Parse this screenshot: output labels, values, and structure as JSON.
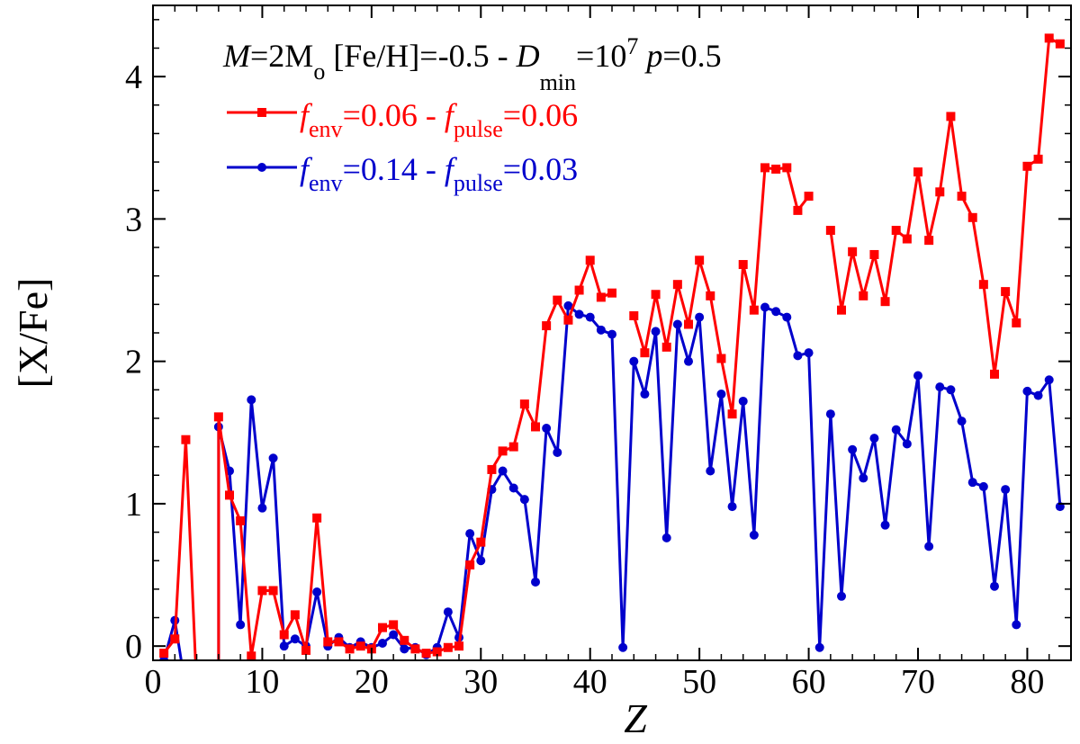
{
  "chart_data": {
    "type": "line",
    "title": {
      "m_symbol": "M",
      "m_value": "=2M",
      "m_sub": "o",
      "feh": " [Fe/H]=-0.5 - ",
      "d_symbol": "D",
      "d_sub": "min",
      "d_value": "=10",
      "d_sup": "7",
      "p_symbol": " p",
      "p_value": "=0.5"
    },
    "xlabel": "Z",
    "ylabel": "[X/Fe]",
    "xlim": [
      0,
      84
    ],
    "ylim": [
      -0.1,
      4.5
    ],
    "xticks": [
      "0",
      "10",
      "20",
      "30",
      "40",
      "50",
      "60",
      "70",
      "80"
    ],
    "yticks": [
      "0",
      "1",
      "2",
      "3",
      "4"
    ],
    "grid": false,
    "legend_position": "top-left",
    "series": [
      {
        "legend": {
          "f1": "f",
          "f1_sub": "env",
          "v1": "=0.06 - ",
          "f2": "f",
          "f2_sub": "pulse",
          "v2": "=0.06"
        },
        "color": "#ff0000",
        "marker": "square",
        "points": [
          [
            1,
            -0.05
          ],
          [
            2,
            0.05
          ],
          [
            3,
            1.45
          ],
          [
            4,
            -0.3
          ],
          null,
          [
            6,
            -0.3
          ],
          [
            6,
            1.61
          ],
          [
            7,
            1.06
          ],
          [
            8,
            0.88
          ],
          [
            9,
            -0.07
          ],
          [
            10,
            0.39
          ],
          [
            11,
            0.39
          ],
          [
            12,
            0.08
          ],
          [
            13,
            0.22
          ],
          [
            14,
            -0.03
          ],
          [
            15,
            0.9
          ],
          [
            16,
            0.03
          ],
          [
            17,
            0.03
          ],
          [
            18,
            -0.02
          ],
          [
            19,
            0.0
          ],
          [
            20,
            -0.02
          ],
          [
            21,
            0.13
          ],
          [
            22,
            0.15
          ],
          [
            23,
            0.04
          ],
          [
            24,
            -0.02
          ],
          [
            25,
            -0.05
          ],
          [
            26,
            -0.04
          ],
          [
            27,
            -0.01
          ],
          [
            28,
            0.0
          ],
          [
            29,
            0.57
          ],
          [
            30,
            0.73
          ],
          [
            31,
            1.24
          ],
          [
            32,
            1.37
          ],
          [
            33,
            1.4
          ],
          [
            34,
            1.7
          ],
          [
            35,
            1.54
          ],
          [
            36,
            2.25
          ],
          [
            37,
            2.43
          ],
          [
            38,
            2.29
          ],
          [
            39,
            2.5
          ],
          [
            40,
            2.71
          ],
          [
            41,
            2.45
          ],
          [
            42,
            2.48
          ],
          null,
          [
            44,
            2.32
          ],
          [
            45,
            2.06
          ],
          [
            46,
            2.47
          ],
          [
            47,
            2.1
          ],
          [
            48,
            2.54
          ],
          [
            49,
            2.26
          ],
          [
            50,
            2.71
          ],
          [
            51,
            2.46
          ],
          [
            52,
            2.02
          ],
          [
            53,
            1.63
          ],
          [
            54,
            2.68
          ],
          [
            55,
            2.36
          ],
          [
            56,
            3.36
          ],
          [
            57,
            3.35
          ],
          [
            58,
            3.36
          ],
          [
            59,
            3.06
          ],
          [
            60,
            3.16
          ],
          null,
          [
            62,
            2.92
          ],
          [
            63,
            2.36
          ],
          [
            64,
            2.77
          ],
          [
            65,
            2.46
          ],
          [
            66,
            2.75
          ],
          [
            67,
            2.42
          ],
          [
            68,
            2.92
          ],
          [
            69,
            2.86
          ],
          [
            70,
            3.33
          ],
          [
            71,
            2.85
          ],
          [
            72,
            3.19
          ],
          [
            73,
            3.72
          ],
          [
            74,
            3.16
          ],
          [
            75,
            3.01
          ],
          [
            76,
            2.54
          ],
          [
            77,
            1.91
          ],
          [
            78,
            2.49
          ],
          [
            79,
            2.27
          ],
          [
            80,
            3.37
          ],
          [
            81,
            3.42
          ],
          [
            82,
            4.27
          ],
          [
            83,
            4.23
          ]
        ]
      },
      {
        "legend": {
          "f1": "f",
          "f1_sub": "env",
          "v1": "=0.14 - ",
          "f2": "f",
          "f2_sub": "pulse",
          "v2": "=0.03"
        },
        "color": "#0000cc",
        "marker": "circle",
        "points": [
          [
            1,
            -0.1
          ],
          [
            2,
            0.18
          ],
          [
            3,
            -0.3
          ],
          null,
          [
            6,
            -0.3
          ],
          [
            6,
            1.54
          ],
          [
            7,
            1.23
          ],
          [
            8,
            0.15
          ],
          [
            9,
            1.73
          ],
          [
            10,
            0.97
          ],
          [
            11,
            1.32
          ],
          [
            12,
            0.0
          ],
          [
            13,
            0.05
          ],
          [
            14,
            0.0
          ],
          [
            15,
            0.38
          ],
          [
            16,
            0.0
          ],
          [
            17,
            0.06
          ],
          [
            18,
            -0.01
          ],
          [
            19,
            0.03
          ],
          [
            20,
            -0.01
          ],
          [
            21,
            0.02
          ],
          [
            22,
            0.08
          ],
          [
            23,
            -0.02
          ],
          [
            24,
            -0.01
          ],
          [
            25,
            -0.06
          ],
          [
            26,
            -0.01
          ],
          [
            27,
            0.24
          ],
          [
            28,
            0.06
          ],
          [
            29,
            0.79
          ],
          [
            30,
            0.6
          ],
          [
            31,
            1.1
          ],
          [
            32,
            1.23
          ],
          [
            33,
            1.11
          ],
          [
            34,
            1.03
          ],
          [
            35,
            0.45
          ],
          [
            36,
            1.53
          ],
          [
            37,
            1.36
          ],
          [
            38,
            2.39
          ],
          [
            39,
            2.33
          ],
          [
            40,
            2.31
          ],
          [
            41,
            2.22
          ],
          [
            42,
            2.19
          ],
          [
            43,
            -0.01
          ],
          [
            44,
            2.0
          ],
          [
            45,
            1.77
          ],
          [
            46,
            2.21
          ],
          [
            47,
            0.76
          ],
          [
            48,
            2.26
          ],
          [
            49,
            2.0
          ],
          [
            50,
            2.31
          ],
          [
            51,
            1.23
          ],
          [
            52,
            1.77
          ],
          [
            53,
            0.98
          ],
          [
            54,
            1.72
          ],
          [
            55,
            0.78
          ],
          [
            56,
            2.38
          ],
          [
            57,
            2.35
          ],
          [
            58,
            2.31
          ],
          [
            59,
            2.04
          ],
          [
            60,
            2.06
          ],
          [
            61,
            -0.01
          ],
          [
            62,
            1.63
          ],
          [
            63,
            0.35
          ],
          [
            64,
            1.38
          ],
          [
            65,
            1.18
          ],
          [
            66,
            1.46
          ],
          [
            67,
            0.85
          ],
          [
            68,
            1.52
          ],
          [
            69,
            1.42
          ],
          [
            70,
            1.9
          ],
          [
            71,
            0.7
          ],
          [
            72,
            1.82
          ],
          [
            73,
            1.8
          ],
          [
            74,
            1.58
          ],
          [
            75,
            1.15
          ],
          [
            76,
            1.12
          ],
          [
            77,
            0.42
          ],
          [
            78,
            1.1
          ],
          [
            79,
            0.15
          ],
          [
            80,
            1.79
          ],
          [
            81,
            1.76
          ],
          [
            82,
            1.87
          ],
          [
            83,
            0.98
          ]
        ]
      }
    ]
  }
}
